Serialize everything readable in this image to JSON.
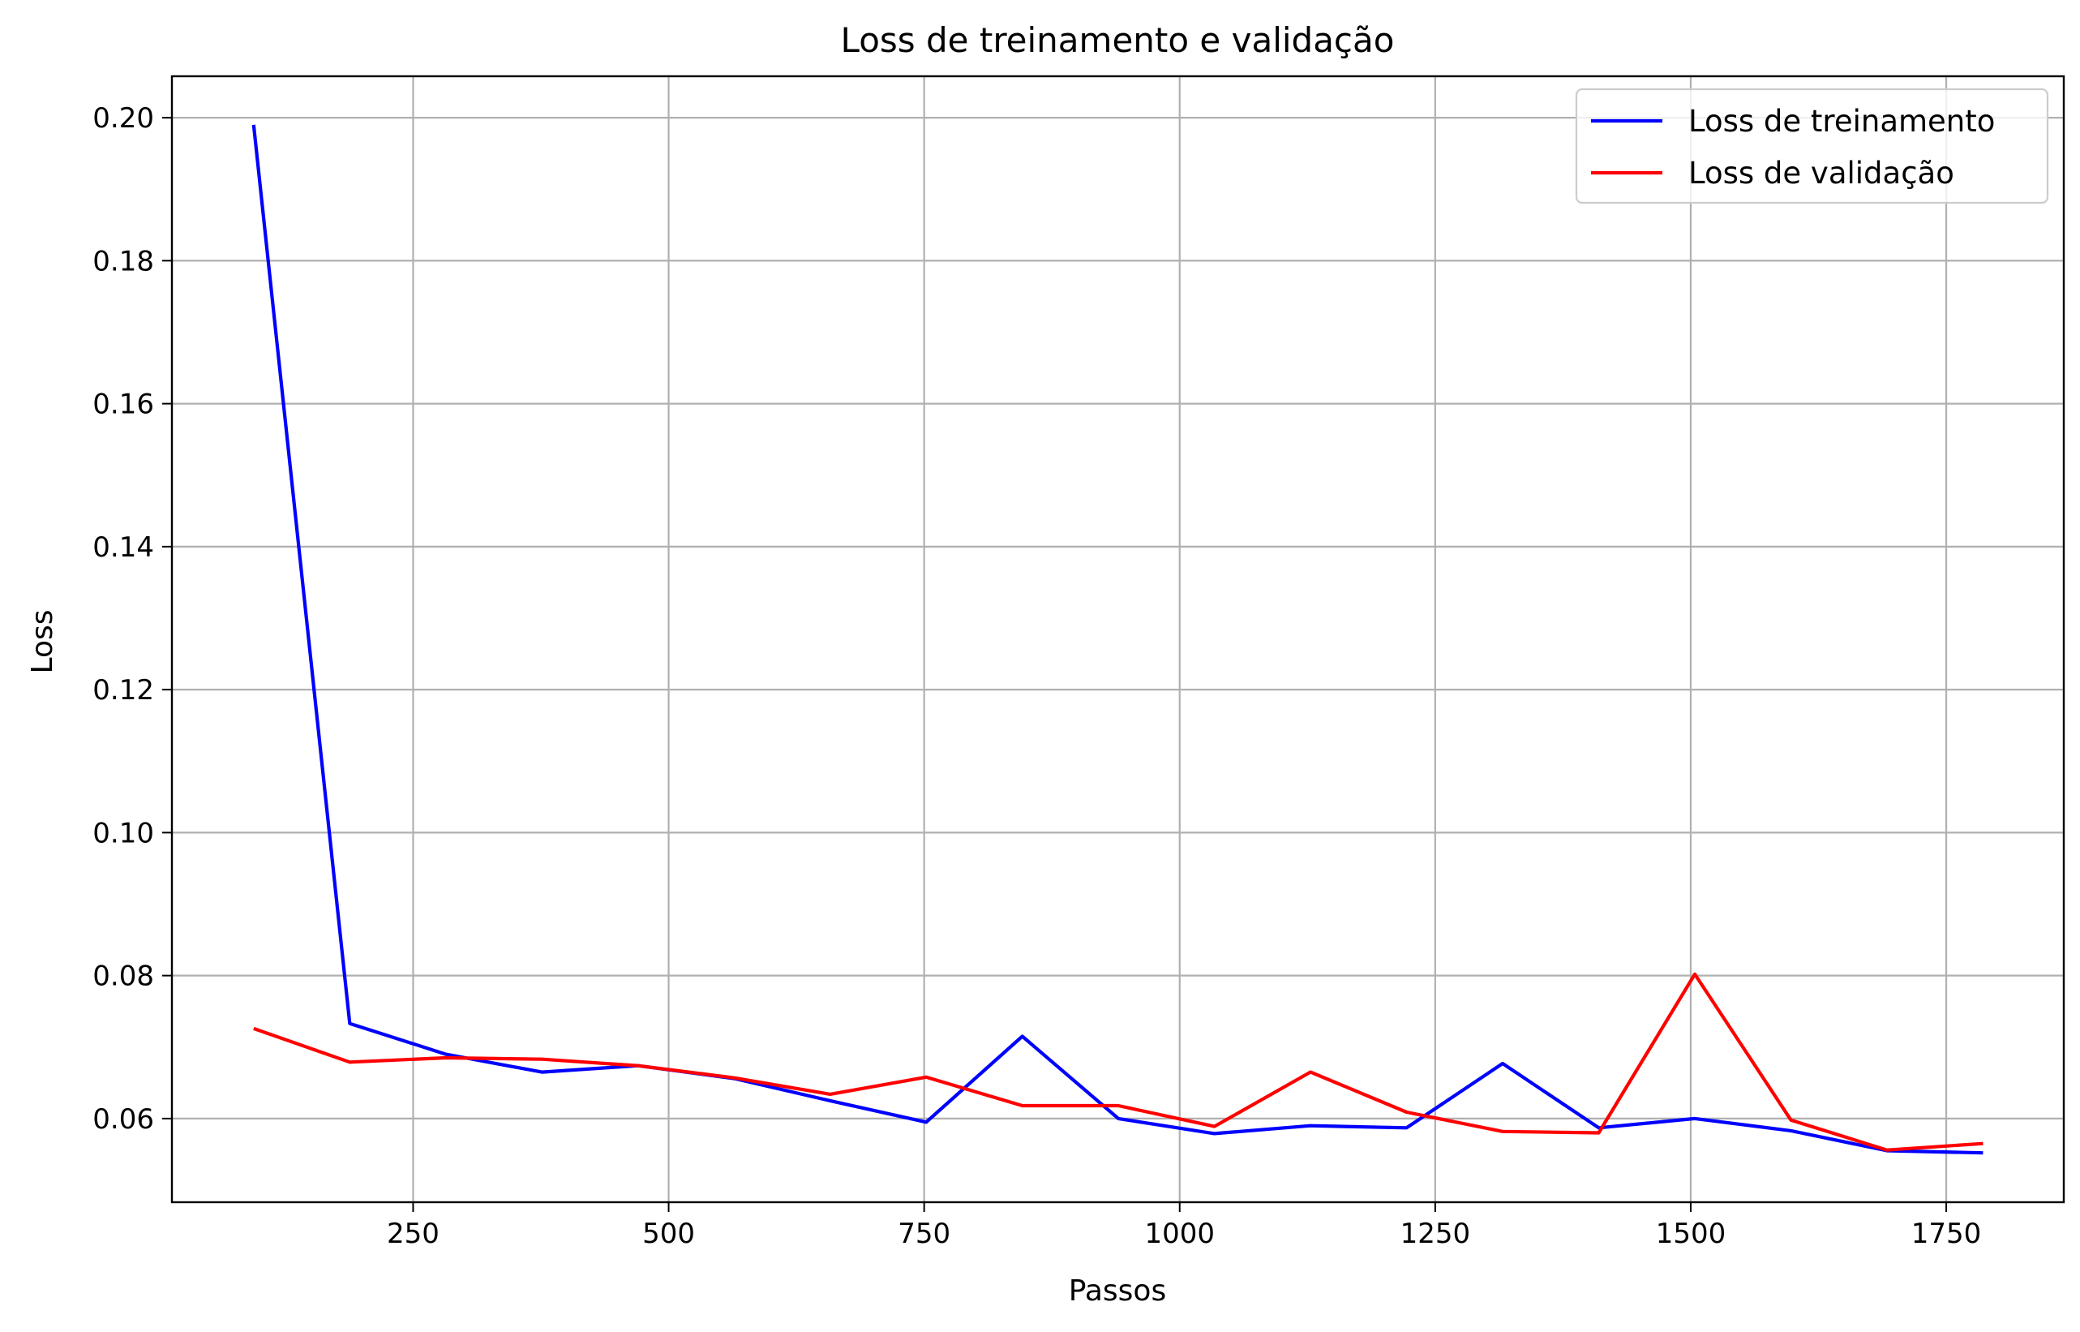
{
  "chart_data": {
    "type": "line",
    "title": "Loss de treinamento e validação",
    "xlabel": "Passos",
    "ylabel": "Loss",
    "xlim": [
      14,
      1865
    ],
    "ylim": [
      0.0483,
      0.2058
    ],
    "xticks": [
      250,
      500,
      750,
      1000,
      1250,
      1500,
      1750
    ],
    "yticks": [
      0.06,
      0.08,
      0.1,
      0.12,
      0.14,
      0.16,
      0.18,
      0.2
    ],
    "xtick_labels": [
      "250",
      "500",
      "750",
      "1000",
      "1250",
      "1500",
      "1750"
    ],
    "ytick_labels": [
      "0.06",
      "0.08",
      "0.10",
      "0.12",
      "0.14",
      "0.16",
      "0.18",
      "0.20"
    ],
    "grid": true,
    "legend_position": "top-right",
    "series": [
      {
        "name": "Loss de treinamento",
        "color": "#0000ff",
        "x": [
          94,
          188,
          282,
          376,
          470,
          564,
          658,
          752,
          846,
          940,
          1034,
          1128,
          1222,
          1316,
          1410,
          1504,
          1598,
          1692,
          1786
        ],
        "y": [
          0.199,
          0.0733,
          0.069,
          0.0665,
          0.0674,
          0.0656,
          0.0625,
          0.0595,
          0.0715,
          0.06,
          0.0579,
          0.059,
          0.0587,
          0.0677,
          0.0587,
          0.06,
          0.0583,
          0.0555,
          0.0552
        ]
      },
      {
        "name": "Loss de validação",
        "color": "#ff0000",
        "x": [
          94,
          188,
          282,
          376,
          470,
          564,
          658,
          752,
          846,
          940,
          1034,
          1128,
          1222,
          1316,
          1410,
          1504,
          1598,
          1692,
          1786
        ],
        "y": [
          0.0726,
          0.0679,
          0.0685,
          0.0683,
          0.0674,
          0.0657,
          0.0634,
          0.0658,
          0.0618,
          0.0618,
          0.0589,
          0.0665,
          0.0609,
          0.0582,
          0.058,
          0.0802,
          0.0598,
          0.0556,
          0.0565
        ]
      }
    ]
  }
}
